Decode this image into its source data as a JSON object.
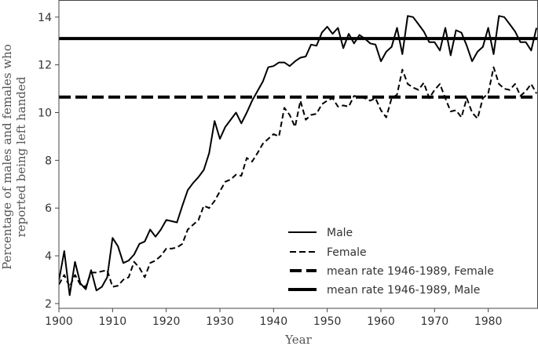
{
  "chart_data": {
    "type": "line",
    "title": "",
    "xlabel": "Year",
    "ylabel_lines": [
      "Percentage of males and females who",
      "reported being left handed"
    ],
    "xlim": [
      1900,
      1989.2
    ],
    "ylim": [
      1.8,
      14.7
    ],
    "xticks": [
      1900,
      1910,
      1920,
      1930,
      1940,
      1950,
      1960,
      1970,
      1980
    ],
    "yticks": [
      2,
      4,
      6,
      8,
      10,
      12,
      14
    ],
    "grid": false,
    "legend_position": "lower-right",
    "x": [
      1900,
      1901,
      1902,
      1903,
      1904,
      1905,
      1906,
      1907,
      1908,
      1909,
      1910,
      1911,
      1912,
      1913,
      1914,
      1915,
      1916,
      1917,
      1918,
      1919,
      1920,
      1921,
      1922,
      1923,
      1924,
      1925,
      1926,
      1927,
      1928,
      1929,
      1930,
      1931,
      1932,
      1933,
      1934,
      1935,
      1936,
      1937,
      1938,
      1939,
      1940,
      1941,
      1942,
      1943,
      1944,
      1945,
      1946,
      1947,
      1948,
      1949,
      1950,
      1951,
      1952,
      1953,
      1954,
      1955,
      1956,
      1957,
      1958,
      1959,
      1960,
      1961,
      1962,
      1963,
      1964,
      1965,
      1966,
      1967,
      1968,
      1969,
      1970,
      1971,
      1972,
      1973,
      1974,
      1975,
      1976,
      1977,
      1978,
      1979,
      1980,
      1981,
      1982,
      1983,
      1984,
      1985,
      1986,
      1987,
      1988,
      1989
    ],
    "series": [
      {
        "name": "Male",
        "style": "solid",
        "values": [
          2.95,
          4.2,
          2.35,
          3.75,
          2.85,
          2.6,
          3.4,
          2.55,
          2.7,
          3.1,
          4.75,
          4.4,
          3.7,
          3.8,
          4.05,
          4.5,
          4.6,
          5.1,
          4.8,
          5.1,
          5.5,
          5.45,
          5.4,
          6.1,
          6.75,
          7.05,
          7.3,
          7.6,
          8.3,
          9.65,
          8.9,
          9.4,
          9.7,
          10.0,
          9.55,
          10.0,
          10.5,
          10.9,
          11.3,
          11.9,
          11.95,
          12.1,
          12.1,
          11.95,
          12.15,
          12.3,
          12.35,
          12.85,
          12.8,
          13.35,
          13.6,
          13.3,
          13.55,
          12.7,
          13.3,
          12.9,
          13.25,
          13.1,
          12.9,
          12.85,
          12.15,
          12.55,
          12.75,
          13.55,
          12.45,
          14.05,
          14.0,
          13.7,
          13.4,
          12.95,
          12.95,
          12.6,
          13.55,
          12.4,
          13.45,
          13.35,
          12.8,
          12.15,
          12.55,
          12.75,
          13.55,
          12.45,
          14.05,
          14.0,
          13.7,
          13.4,
          12.95,
          12.95,
          12.6,
          13.55
        ]
      },
      {
        "name": "Female",
        "style": "dashed",
        "values": [
          2.8,
          3.2,
          2.7,
          3.2,
          2.8,
          2.7,
          3.3,
          3.3,
          3.35,
          3.4,
          2.7,
          2.75,
          3.0,
          3.1,
          3.75,
          3.5,
          3.1,
          3.7,
          3.8,
          4.0,
          4.3,
          4.3,
          4.35,
          4.5,
          5.1,
          5.3,
          5.5,
          6.1,
          6.0,
          6.3,
          6.7,
          7.1,
          7.2,
          7.4,
          7.35,
          8.1,
          7.95,
          8.3,
          8.7,
          8.9,
          9.1,
          9.0,
          10.2,
          9.9,
          9.4,
          10.5,
          9.7,
          9.9,
          9.95,
          10.35,
          10.5,
          10.6,
          10.25,
          10.3,
          10.25,
          10.7,
          10.65,
          10.6,
          10.5,
          10.6,
          10.1,
          9.8,
          10.6,
          10.75,
          11.8,
          11.2,
          11.05,
          10.95,
          11.25,
          10.6,
          10.95,
          11.2,
          10.6,
          10.05,
          10.1,
          9.8,
          10.6,
          10.0,
          9.75,
          10.6,
          10.8,
          11.9,
          11.2,
          11.0,
          10.95,
          11.2,
          10.7,
          10.9,
          11.2,
          10.8
        ]
      }
    ],
    "hlines": [
      {
        "name": "mean rate 1946-1989, Female",
        "style": "thick-dashed",
        "value": 10.65
      },
      {
        "name": "mean rate 1946-1989, Male",
        "style": "thick-solid",
        "value": 13.1
      }
    ],
    "legend": [
      "Male",
      "Female",
      "mean rate 1946-1989, Female",
      "mean rate 1946-1989, Male"
    ]
  }
}
